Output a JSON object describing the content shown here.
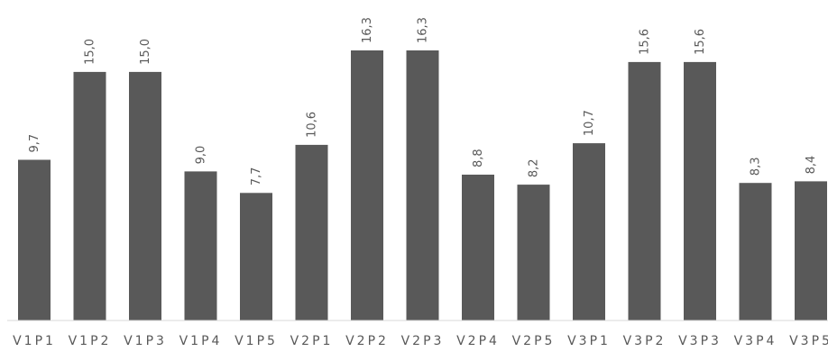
{
  "chart_data": {
    "type": "bar",
    "categories": [
      "V1P1",
      "V1P2",
      "V1P3",
      "V1P4",
      "V1P5",
      "V2P1",
      "V2P2",
      "V2P3",
      "V2P4",
      "V2P5",
      "V3P1",
      "V3P2",
      "V3P3",
      "V3P4",
      "V3P5"
    ],
    "values": [
      9.7,
      15.0,
      15.0,
      9.0,
      7.7,
      10.6,
      16.3,
      16.3,
      8.8,
      8.2,
      10.7,
      15.6,
      15.6,
      8.3,
      8.4
    ],
    "data_labels": [
      "9,7",
      "15,0",
      "15,0",
      "9,0",
      "7,7",
      "10,6",
      "16,3",
      "16,3",
      "8,8",
      "8,2",
      "10,7",
      "15,6",
      "15,6",
      "8,3",
      "8,4"
    ],
    "ylim": [
      0,
      16.3
    ],
    "grid": false,
    "legend": "none",
    "colors": {
      "bar": "#595959",
      "label": "#595959",
      "axis": "#d9d9d9"
    }
  }
}
